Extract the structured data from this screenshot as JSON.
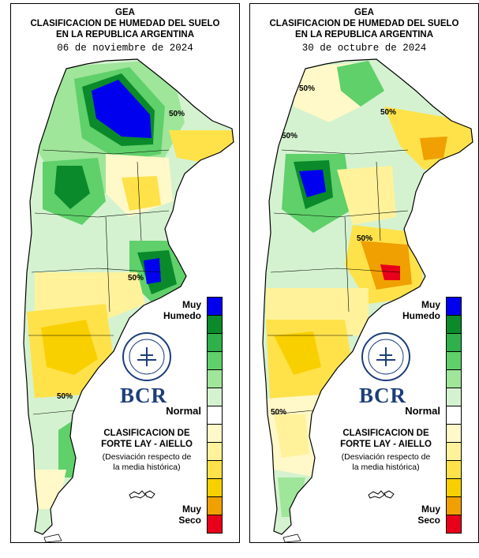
{
  "legend_colors": [
    "#0000ee",
    "#0a8a2a",
    "#2fb04a",
    "#5fd06a",
    "#9fe59a",
    "#d4f2cf",
    "#ffffff",
    "#fff8c8",
    "#fff29a",
    "#ffe24a",
    "#f8d000",
    "#f0a000",
    "#e8001a"
  ],
  "legend_title_line1": "CLASIFICACION DE",
  "legend_title_line2": "FORTE LAY - AIELLO",
  "legend_note_line1": "(Desviación respecto de",
  "legend_note_line2": "la media histórica)",
  "label_muy_humedo_1": "Muy",
  "label_muy_humedo_2": "Humedo",
  "label_normal": "Normal",
  "label_muy_seco_1": "Muy",
  "label_muy_seco_2": "Seco",
  "logo_text": "BCR",
  "maps": [
    {
      "org": "GEA",
      "title_line1": "CLASIFICACION DE HUMEDAD DEL SUELO",
      "title_line2": "EN LA REPUBLICA ARGENTINA",
      "date": "06 de noviembre de 2024",
      "contour_labels": [
        "50%",
        "50%",
        "50%"
      ]
    },
    {
      "org": "GEA",
      "title_line1": "CLASIFICACION DE HUMEDAD DEL SUELO",
      "title_line2": "EN LA REPUBLICA ARGENTINA",
      "date": "30 de octubre de 2024",
      "contour_labels": [
        "50%",
        "50%",
        "50%",
        "50%",
        "50%"
      ]
    }
  ]
}
